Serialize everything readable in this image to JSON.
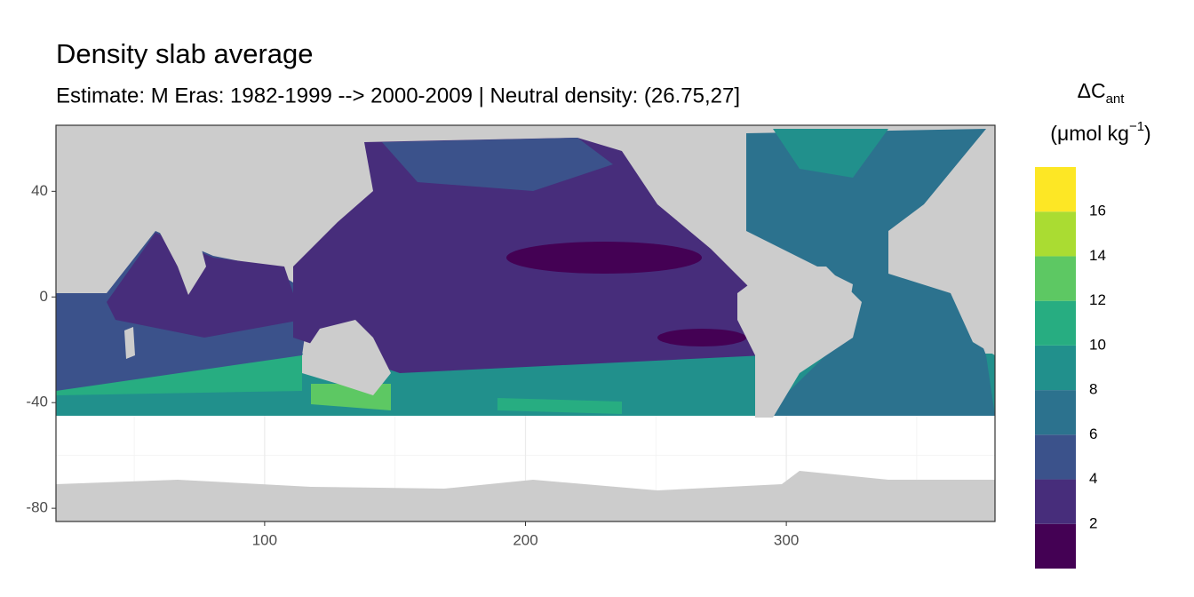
{
  "chart_data": {
    "type": "raster-map",
    "title": "Density slab average",
    "subtitle": "Estimate: M Eras: 1982-1999 --> 2000-2009 | Neutral density: (26.75,27]",
    "legend": {
      "title": "ΔC",
      "title_sub": "ant",
      "unit": "(μmol kg",
      "unit_sup": "−1",
      "unit_end": ")",
      "bins": [
        0,
        2,
        4,
        6,
        8,
        10,
        12,
        14,
        16,
        18
      ],
      "colors": [
        "#440154",
        "#472d7b",
        "#3b528b",
        "#2c728e",
        "#21908c",
        "#27ad81",
        "#5dc863",
        "#aadc32",
        "#fde725"
      ],
      "ticks": [
        2,
        4,
        6,
        8,
        10,
        12,
        14,
        16
      ]
    },
    "xlim": [
      20,
      380
    ],
    "ylim": [
      -85,
      65
    ],
    "xticks": [
      100,
      200,
      300
    ],
    "yticks": [
      -80,
      -40,
      0,
      40
    ],
    "xminor": [
      50,
      150,
      250,
      350
    ],
    "yminor": [
      -60,
      -20,
      20,
      60
    ],
    "grid": true
  }
}
